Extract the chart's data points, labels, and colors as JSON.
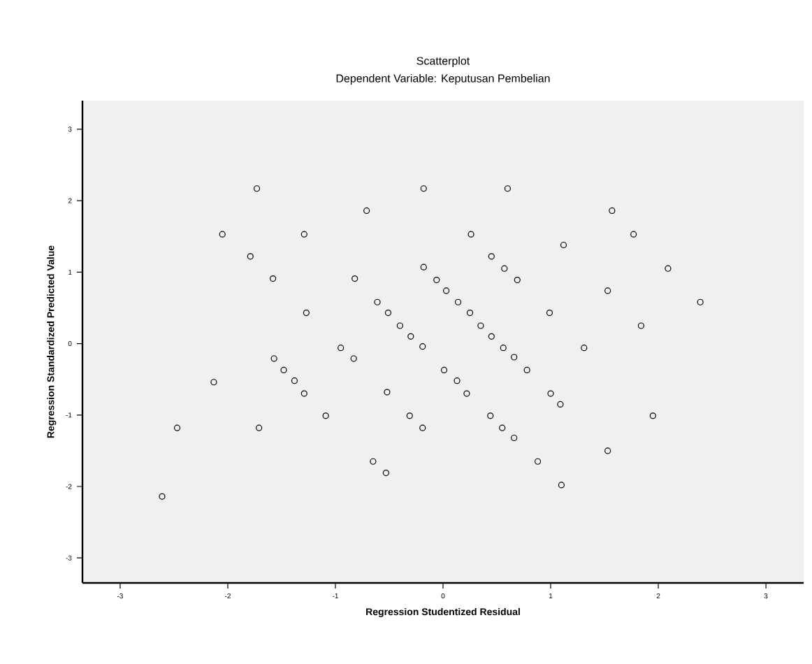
{
  "chart_data": {
    "type": "scatter",
    "title": "Scatterplot",
    "subtitle": "Dependent Variable: Keputusan Pembelian",
    "xlabel": "Regression Studentized Residual",
    "ylabel": "Regression Standardized Predicted Value",
    "xlim": [
      -3.35,
      3.35
    ],
    "ylim": [
      -3.35,
      3.4
    ],
    "xticks": [
      -3,
      -2,
      -1,
      0,
      1,
      2,
      3
    ],
    "yticks": [
      -3,
      -2,
      -1,
      0,
      1,
      2,
      3
    ],
    "grid": false,
    "marker": "circle",
    "series": [
      {
        "color": "#000000",
        "x": [
          -1.73,
          -0.18,
          0.6,
          -0.71,
          1.57,
          -2.05,
          -1.29,
          0.26,
          1.77,
          -1.79,
          -0.18,
          -1.58,
          -0.82,
          1.12,
          2.09,
          -0.61,
          -0.51,
          -0.4,
          -0.3,
          -0.19,
          -1.27,
          -0.95,
          -0.83,
          -1.57,
          -1.48,
          -1.38,
          -2.13,
          -0.52,
          -0.06,
          0.03,
          0.14,
          0.25,
          0.35,
          0.45,
          0.56,
          0.66,
          0.78,
          0.45,
          0.57,
          0.69,
          1.53,
          2.39,
          0.99,
          1.84,
          1.31,
          0.01,
          0.13,
          0.22,
          1.0,
          1.09,
          -1.29,
          -2.47,
          -1.71,
          -1.09,
          -0.31,
          -0.19,
          -0.65,
          -0.53,
          -2.61,
          0.44,
          0.55,
          0.66,
          0.88,
          1.1,
          1.53,
          1.95
        ],
        "values": [
          2.17,
          2.17,
          2.17,
          1.86,
          1.86,
          1.53,
          1.53,
          1.53,
          1.53,
          1.22,
          1.07,
          0.91,
          0.91,
          1.38,
          1.05,
          0.58,
          0.43,
          0.25,
          0.1,
          -0.04,
          0.43,
          -0.06,
          -0.21,
          -0.21,
          -0.37,
          -0.52,
          -0.54,
          -0.68,
          0.89,
          0.74,
          0.58,
          0.43,
          0.25,
          0.1,
          -0.06,
          -0.19,
          -0.37,
          1.22,
          1.05,
          0.89,
          0.74,
          0.58,
          0.43,
          0.25,
          -0.06,
          -0.37,
          -0.52,
          -0.7,
          -0.7,
          -0.85,
          -0.7,
          -1.18,
          -1.18,
          -1.01,
          -1.01,
          -1.18,
          -1.65,
          -1.81,
          -2.14,
          -1.01,
          -1.18,
          -1.32,
          -1.65,
          -1.98,
          -1.5,
          -1.01
        ]
      }
    ]
  }
}
